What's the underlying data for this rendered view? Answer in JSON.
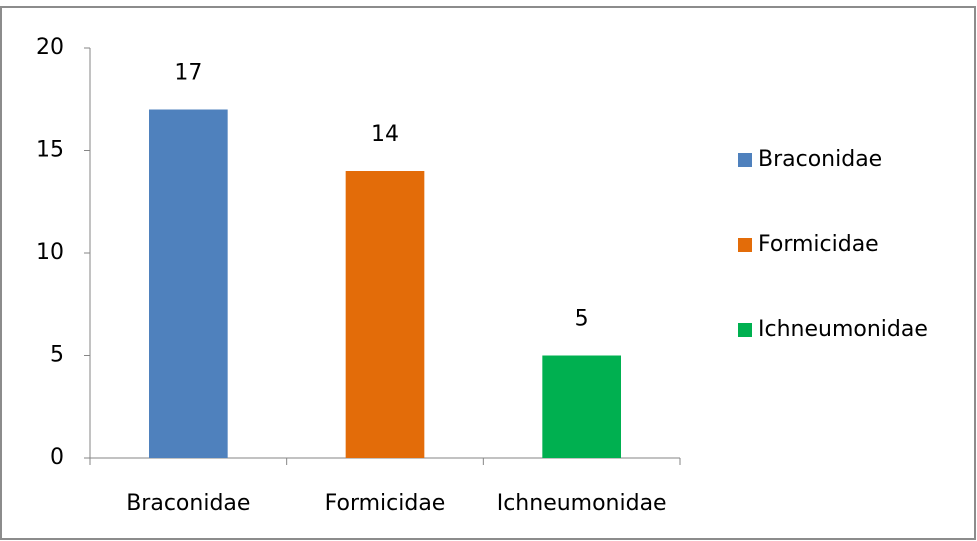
{
  "chart_data": {
    "type": "bar",
    "categories": [
      "Braconidae",
      "Formicidae",
      "Ichneumonidae"
    ],
    "values": [
      17,
      14,
      5
    ],
    "colors": [
      "#4f81bd",
      "#e36c09",
      "#00b050"
    ],
    "ylim": [
      0,
      20
    ],
    "yticks": [
      0,
      5,
      10,
      15,
      20
    ],
    "grid": false,
    "legend": "right"
  }
}
